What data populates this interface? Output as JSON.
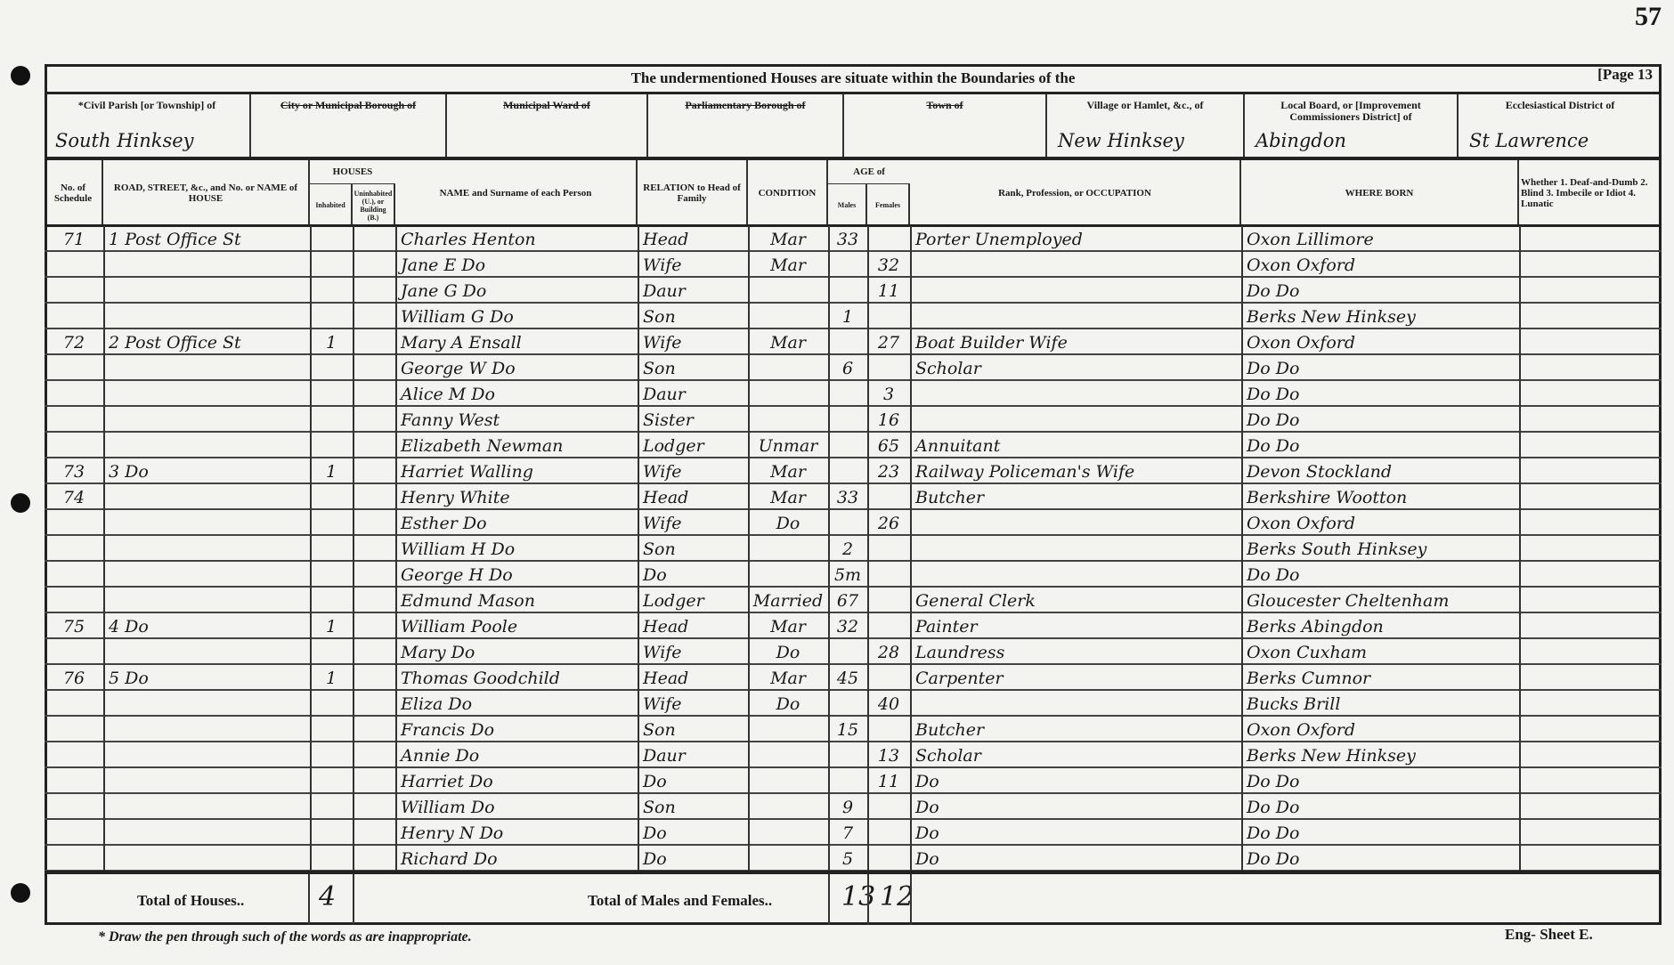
{
  "sheet_number": "57",
  "title": "The undermentioned Houses are situate within the Boundaries of the",
  "page_label": "[Page 13",
  "districts": [
    {
      "label": "*Civil Parish [or Township] of",
      "value": "South Hinksey",
      "struck": false
    },
    {
      "label": "City or Municipal Borough of",
      "value": "",
      "struck": true
    },
    {
      "label": "Municipal Ward of",
      "value": "",
      "struck": true
    },
    {
      "label": "Parliamentary Borough of",
      "value": "",
      "struck": true
    },
    {
      "label": "Town of",
      "value": "",
      "struck": true
    },
    {
      "label": "Village or Hamlet, &c., of",
      "value": "New Hinksey",
      "struck": false
    },
    {
      "label": "Local Board, or [Improvement Commissioners District] of",
      "value": "Abingdon",
      "struck": false
    },
    {
      "label": "Ecclesiastical District of",
      "value": "St Lawrence",
      "struck": false
    }
  ],
  "columns": {
    "schedule": "No. of Schedule",
    "road": "ROAD, STREET, &c., and No. or NAME of HOUSE",
    "houses": "HOUSES",
    "inhabited": "Inhabited",
    "uninhabited": "Uninhabited (U.), or Building (B.)",
    "name": "NAME and Surname of each Person",
    "relation": "RELATION to Head of Family",
    "condition": "CONDITION",
    "age": "AGE of",
    "males": "Males",
    "females": "Females",
    "occupation": "Rank, Profession, or OCCUPATION",
    "born": "WHERE BORN",
    "whether": "Whether 1. Deaf-and-Dumb 2. Blind 3. Imbecile or Idiot 4. Lunatic"
  },
  "rows": [
    {
      "schedule": "71",
      "road": "1 Post Office St",
      "inhabited": "",
      "uninhabited": "",
      "name": "Charles Henton",
      "relation": "Head",
      "condition": "Mar",
      "male": "33",
      "female": "",
      "occupation": "Porter Unemployed",
      "born": "Oxon Lillimore"
    },
    {
      "schedule": "",
      "road": "",
      "inhabited": "",
      "uninhabited": "",
      "name": "Jane E Do",
      "relation": "Wife",
      "condition": "Mar",
      "male": "",
      "female": "32",
      "occupation": "",
      "born": "Oxon Oxford"
    },
    {
      "schedule": "",
      "road": "",
      "inhabited": "",
      "uninhabited": "",
      "name": "Jane G Do",
      "relation": "Daur",
      "condition": "",
      "male": "",
      "female": "11",
      "occupation": "",
      "born": "Do Do"
    },
    {
      "schedule": "",
      "road": "",
      "inhabited": "",
      "uninhabited": "",
      "name": "William G Do",
      "relation": "Son",
      "condition": "",
      "male": "1",
      "female": "",
      "occupation": "",
      "born": "Berks New Hinksey"
    },
    {
      "schedule": "72",
      "road": "2 Post Office St",
      "inhabited": "1",
      "uninhabited": "",
      "name": "Mary A Ensall",
      "relation": "Wife",
      "condition": "Mar",
      "male": "",
      "female": "27",
      "occupation": "Boat Builder Wife",
      "born": "Oxon Oxford"
    },
    {
      "schedule": "",
      "road": "",
      "inhabited": "",
      "uninhabited": "",
      "name": "George W Do",
      "relation": "Son",
      "condition": "",
      "male": "6",
      "female": "",
      "occupation": "Scholar",
      "born": "Do Do"
    },
    {
      "schedule": "",
      "road": "",
      "inhabited": "",
      "uninhabited": "",
      "name": "Alice M Do",
      "relation": "Daur",
      "condition": "",
      "male": "",
      "female": "3",
      "occupation": "",
      "born": "Do Do"
    },
    {
      "schedule": "",
      "road": "",
      "inhabited": "",
      "uninhabited": "",
      "name": "Fanny West",
      "relation": "Sister",
      "condition": "",
      "male": "",
      "female": "16",
      "occupation": "",
      "born": "Do Do"
    },
    {
      "schedule": "",
      "road": "",
      "inhabited": "",
      "uninhabited": "",
      "name": "Elizabeth Newman",
      "relation": "Lodger",
      "condition": "Unmar",
      "male": "",
      "female": "65",
      "occupation": "Annuitant",
      "born": "Do Do"
    },
    {
      "schedule": "73",
      "road": "3 Do",
      "inhabited": "1",
      "uninhabited": "",
      "name": "Harriet Walling",
      "relation": "Wife",
      "condition": "Mar",
      "male": "",
      "female": "23",
      "occupation": "Railway Policeman's Wife",
      "born": "Devon Stockland"
    },
    {
      "schedule": "74",
      "road": "",
      "inhabited": "",
      "uninhabited": "",
      "name": "Henry White",
      "relation": "Head",
      "condition": "Mar",
      "male": "33",
      "female": "",
      "occupation": "Butcher",
      "born": "Berkshire Wootton"
    },
    {
      "schedule": "",
      "road": "",
      "inhabited": "",
      "uninhabited": "",
      "name": "Esther Do",
      "relation": "Wife",
      "condition": "Do",
      "male": "",
      "female": "26",
      "occupation": "",
      "born": "Oxon Oxford"
    },
    {
      "schedule": "",
      "road": "",
      "inhabited": "",
      "uninhabited": "",
      "name": "William H Do",
      "relation": "Son",
      "condition": "",
      "male": "2",
      "female": "",
      "occupation": "",
      "born": "Berks South Hinksey"
    },
    {
      "schedule": "",
      "road": "",
      "inhabited": "",
      "uninhabited": "",
      "name": "George H Do",
      "relation": "Do",
      "condition": "",
      "male": "5m",
      "female": "",
      "occupation": "",
      "born": "Do Do"
    },
    {
      "schedule": "",
      "road": "",
      "inhabited": "",
      "uninhabited": "",
      "name": "Edmund Mason",
      "relation": "Lodger",
      "condition": "Married",
      "male": "67",
      "female": "",
      "occupation": "General Clerk",
      "born": "Gloucester Cheltenham"
    },
    {
      "schedule": "75",
      "road": "4 Do",
      "inhabited": "1",
      "uninhabited": "",
      "name": "William Poole",
      "relation": "Head",
      "condition": "Mar",
      "male": "32",
      "female": "",
      "occupation": "Painter",
      "born": "Berks Abingdon"
    },
    {
      "schedule": "",
      "road": "",
      "inhabited": "",
      "uninhabited": "",
      "name": "Mary Do",
      "relation": "Wife",
      "condition": "Do",
      "male": "",
      "female": "28",
      "occupation": "Laundress",
      "born": "Oxon Cuxham"
    },
    {
      "schedule": "76",
      "road": "5 Do",
      "inhabited": "1",
      "uninhabited": "",
      "name": "Thomas Goodchild",
      "relation": "Head",
      "condition": "Mar",
      "male": "45",
      "female": "",
      "occupation": "Carpenter",
      "born": "Berks Cumnor"
    },
    {
      "schedule": "",
      "road": "",
      "inhabited": "",
      "uninhabited": "",
      "name": "Eliza Do",
      "relation": "Wife",
      "condition": "Do",
      "male": "",
      "female": "40",
      "occupation": "",
      "born": "Bucks Brill"
    },
    {
      "schedule": "",
      "road": "",
      "inhabited": "",
      "uninhabited": "",
      "name": "Francis Do",
      "relation": "Son",
      "condition": "",
      "male": "15",
      "female": "",
      "occupation": "Butcher",
      "born": "Oxon Oxford"
    },
    {
      "schedule": "",
      "road": "",
      "inhabited": "",
      "uninhabited": "",
      "name": "Annie Do",
      "relation": "Daur",
      "condition": "",
      "male": "",
      "female": "13",
      "occupation": "Scholar",
      "born": "Berks New Hinksey"
    },
    {
      "schedule": "",
      "road": "",
      "inhabited": "",
      "uninhabited": "",
      "name": "Harriet Do",
      "relation": "Do",
      "condition": "",
      "male": "",
      "female": "11",
      "occupation": "Do",
      "born": "Do Do"
    },
    {
      "schedule": "",
      "road": "",
      "inhabited": "",
      "uninhabited": "",
      "name": "William Do",
      "relation": "Son",
      "condition": "",
      "male": "9",
      "female": "",
      "occupation": "Do",
      "born": "Do Do"
    },
    {
      "schedule": "",
      "road": "",
      "inhabited": "",
      "uninhabited": "",
      "name": "Henry N Do",
      "relation": "Do",
      "condition": "",
      "male": "7",
      "female": "",
      "occupation": "Do",
      "born": "Do Do"
    },
    {
      "schedule": "",
      "road": "",
      "inhabited": "",
      "uninhabited": "",
      "name": "Richard Do",
      "relation": "Do",
      "condition": "",
      "male": "5",
      "female": "",
      "occupation": "Do",
      "born": "Do Do"
    }
  ],
  "totals": {
    "houses_label": "Total of Houses..",
    "houses_value": "4",
    "persons_label": "Total of Males and Females..",
    "males": "13",
    "females": "12"
  },
  "footnote": "* Draw the pen through such of the words as are inappropriate.",
  "form_id": "Eng- Sheet E."
}
